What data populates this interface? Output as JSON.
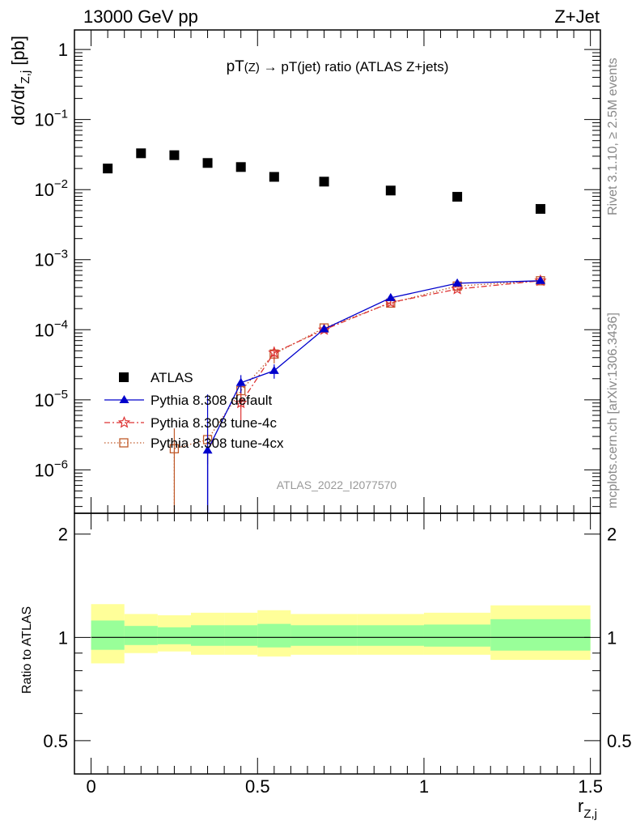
{
  "header": {
    "left": "13000 GeV pp",
    "right": "Z+Jet"
  },
  "side_labels": {
    "rivet": "Rivet 3.1.10, ≥ 2.5M events",
    "mcplots": "mcplots.cern.ch [arXiv:1306.3436]"
  },
  "chart_data": [
    {
      "type": "scatter",
      "title": "pT(Z) → pT(jet) ratio (ATLAS Z+jets)",
      "xlabel": "r_{Z,j}",
      "ylabel": "dσ/dr_{Z,j} [pb]",
      "yscale": "log",
      "ylim": [
        2.4e-07,
        1.9
      ],
      "xlim": [
        -0.05,
        1.53
      ],
      "ytick_labels": [
        "1",
        "10^-1",
        "10^-2",
        "10^-3",
        "10^-4",
        "10^-5",
        "10^-6"
      ],
      "analysis_tag": "ATLAS_2022_I2077570",
      "legend_position": "lower-left",
      "series": [
        {
          "name": "ATLAS",
          "color": "#000000",
          "marker": "square",
          "x": [
            0.05,
            0.15,
            0.25,
            0.35,
            0.45,
            0.55,
            0.7,
            0.9,
            1.1,
            1.35
          ],
          "y": [
            0.02,
            0.033,
            0.031,
            0.024,
            0.021,
            0.0152,
            0.013,
            0.0097,
            0.0079,
            0.0053
          ]
        },
        {
          "name": "Pythia 8.308 default",
          "color": "#0000cc",
          "marker": "triangle",
          "x": [
            0.35,
            0.45,
            0.55,
            0.7,
            0.9,
            1.1,
            1.35
          ],
          "y": [
            1.9e-06,
            1.75e-05,
            2.6e-05,
            0.000102,
            0.000285,
            0.00046,
            0.0005
          ],
          "yerr": [
            1e-05,
            5e-06,
            6e-06,
            6e-06,
            1.5e-05,
            2e-05,
            2e-05
          ]
        },
        {
          "name": "Pythia 8.308 tune-4c",
          "color": "#dd3333",
          "marker": "star",
          "x": [
            0.45,
            0.55,
            0.7,
            0.9,
            1.1,
            1.35
          ],
          "y": [
            9e-06,
            4.7e-05,
            0.0001,
            0.000245,
            0.00038,
            0.0005
          ],
          "yerr": [
            4e-06,
            1e-05,
            6e-06,
            1.4e-05,
            1.8e-05,
            2e-05
          ]
        },
        {
          "name": "Pythia 8.308 tune-4cx",
          "color": "#c05a2a",
          "marker": "open-square",
          "x": [
            0.25,
            0.35,
            0.45,
            0.55,
            0.7,
            0.9,
            1.1,
            1.35
          ],
          "y": [
            2e-06,
            2.7e-06,
            1.35e-05,
            4.5e-05,
            0.000106,
            0.00024,
            0.00042,
            0.0005
          ],
          "yerr": [
            1.9e-06,
            1.5e-06,
            6e-06,
            1.2e-05,
            6e-06,
            1.4e-05,
            1.8e-05,
            2e-05
          ]
        }
      ]
    },
    {
      "type": "area",
      "ylabel": "Ratio to ATLAS",
      "xlabel": "r_{Z,j}",
      "yscale": "log",
      "ylim": [
        0.4,
        2.3
      ],
      "xlim": [
        -0.05,
        1.53
      ],
      "ytick_labels": [
        "2",
        "1",
        "0.5"
      ],
      "xtick_labels": [
        "0",
        "0.5",
        "1",
        "1.5"
      ],
      "bins": [
        {
          "lo": 0.0,
          "hi": 0.1,
          "inner": [
            0.92,
            1.12
          ],
          "outer": [
            0.84,
            1.25
          ]
        },
        {
          "lo": 0.1,
          "hi": 0.2,
          "inner": [
            0.95,
            1.08
          ],
          "outer": [
            0.9,
            1.17
          ]
        },
        {
          "lo": 0.2,
          "hi": 0.3,
          "inner": [
            0.955,
            1.07
          ],
          "outer": [
            0.91,
            1.16
          ]
        },
        {
          "lo": 0.3,
          "hi": 0.4,
          "inner": [
            0.945,
            1.085
          ],
          "outer": [
            0.89,
            1.18
          ]
        },
        {
          "lo": 0.4,
          "hi": 0.5,
          "inner": [
            0.945,
            1.085
          ],
          "outer": [
            0.89,
            1.18
          ]
        },
        {
          "lo": 0.5,
          "hi": 0.6,
          "inner": [
            0.935,
            1.095
          ],
          "outer": [
            0.88,
            1.2
          ]
        },
        {
          "lo": 0.6,
          "hi": 0.8,
          "inner": [
            0.945,
            1.085
          ],
          "outer": [
            0.89,
            1.17
          ]
        },
        {
          "lo": 0.8,
          "hi": 1.0,
          "inner": [
            0.945,
            1.085
          ],
          "outer": [
            0.89,
            1.17
          ]
        },
        {
          "lo": 1.0,
          "hi": 1.2,
          "inner": [
            0.94,
            1.09
          ],
          "outer": [
            0.89,
            1.18
          ]
        },
        {
          "lo": 1.2,
          "hi": 1.5,
          "inner": [
            0.915,
            1.13
          ],
          "outer": [
            0.86,
            1.24
          ]
        }
      ],
      "colors": {
        "inner": "#99ff99",
        "outer": "#ffff99",
        "reference_line": "#000000"
      }
    }
  ]
}
